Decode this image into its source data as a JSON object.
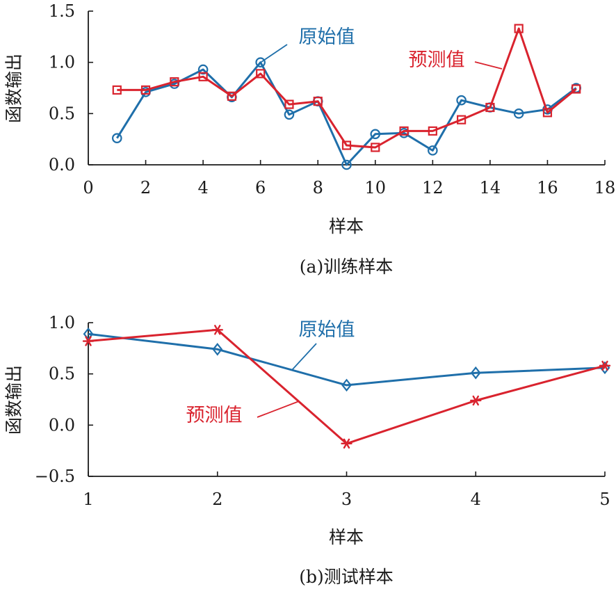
{
  "chart_data": [
    {
      "type": "line",
      "caption": "(a)训练样本",
      "xlabel": "样本",
      "ylabel": "函数输出",
      "xlim": [
        0,
        18
      ],
      "ylim": [
        0,
        1.5
      ],
      "xticks": [
        "0",
        "2",
        "4",
        "6",
        "8",
        "10",
        "12",
        "14",
        "16",
        "18"
      ],
      "yticks": [
        "0.0",
        "0.5",
        "1.0",
        "1.5"
      ],
      "x": [
        1,
        2,
        3,
        4,
        5,
        6,
        7,
        8,
        9,
        10,
        11,
        12,
        13,
        14,
        15,
        16,
        17
      ],
      "series": [
        {
          "name": "原始值",
          "color": "#1f6faa",
          "marker": "circle",
          "values": [
            0.26,
            0.71,
            0.79,
            0.93,
            0.66,
            1.0,
            0.49,
            0.62,
            0.0,
            0.3,
            0.31,
            0.14,
            0.63,
            0.56,
            0.5,
            0.54,
            0.75
          ]
        },
        {
          "name": "预测值",
          "color": "#d9232e",
          "marker": "square",
          "values": [
            0.73,
            0.73,
            0.81,
            0.86,
            0.67,
            0.89,
            0.59,
            0.62,
            0.19,
            0.17,
            0.33,
            0.33,
            0.44,
            0.56,
            1.33,
            0.51,
            0.74
          ]
        }
      ]
    },
    {
      "type": "line",
      "caption": "(b)测试样本",
      "xlabel": "样本",
      "ylabel": "函数输出",
      "xlim": [
        1,
        5
      ],
      "ylim": [
        -0.5,
        1.0
      ],
      "xticks": [
        "1",
        "2",
        "3",
        "4",
        "5"
      ],
      "yticks": [
        "−0.5",
        "0.0",
        "0.5",
        "1.0"
      ],
      "x": [
        1,
        2,
        3,
        4,
        5
      ],
      "series": [
        {
          "name": "原始值",
          "color": "#1f6faa",
          "marker": "diamond",
          "values": [
            0.89,
            0.74,
            0.39,
            0.51,
            0.56
          ]
        },
        {
          "name": "预测值",
          "color": "#d9232e",
          "marker": "asterisk",
          "values": [
            0.82,
            0.93,
            -0.18,
            0.24,
            0.58
          ]
        }
      ]
    }
  ]
}
